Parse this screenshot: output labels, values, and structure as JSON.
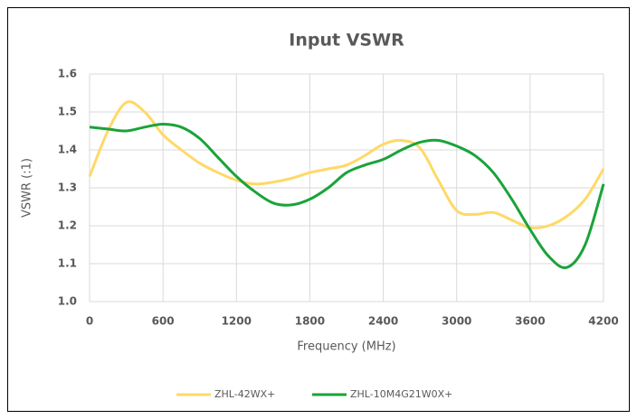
{
  "chart_data": {
    "type": "line",
    "title": "Input VSWR",
    "xlabel": "Frequency (MHz)",
    "ylabel": "VSWR (:1)",
    "x": [
      0,
      150,
      300,
      450,
      600,
      750,
      900,
      1050,
      1200,
      1350,
      1500,
      1650,
      1800,
      1950,
      2100,
      2250,
      2400,
      2550,
      2700,
      2850,
      3000,
      3150,
      3300,
      3450,
      3600,
      3750,
      3900,
      4050,
      4200
    ],
    "series": [
      {
        "name": "ZHL-42WX+",
        "color": "#ffd966",
        "values": [
          1.33,
          1.45,
          1.525,
          1.5,
          1.44,
          1.4,
          1.365,
          1.34,
          1.32,
          1.31,
          1.315,
          1.325,
          1.34,
          1.35,
          1.36,
          1.385,
          1.415,
          1.425,
          1.405,
          1.32,
          1.24,
          1.23,
          1.235,
          1.215,
          1.195,
          1.2,
          1.225,
          1.27,
          1.35
        ]
      },
      {
        "name": "ZHL-10M4G21W0X+",
        "color": "#1aa33a",
        "values": [
          1.46,
          1.455,
          1.45,
          1.46,
          1.468,
          1.46,
          1.43,
          1.38,
          1.33,
          1.29,
          1.26,
          1.255,
          1.27,
          1.3,
          1.34,
          1.36,
          1.375,
          1.4,
          1.42,
          1.425,
          1.41,
          1.385,
          1.34,
          1.27,
          1.19,
          1.12,
          1.09,
          1.15,
          1.31
        ]
      }
    ],
    "xlim": [
      0,
      4200
    ],
    "xticks": [
      0,
      600,
      1200,
      1800,
      2400,
      3000,
      3600,
      4200
    ],
    "ylim": [
      1.0,
      1.6
    ],
    "yticks": [
      {
        "value": 1.0,
        "label": "1.0"
      },
      1.1,
      1.2,
      1.3,
      1.4,
      1.5,
      1.6
    ],
    "grid": true,
    "legend": "bottom"
  }
}
